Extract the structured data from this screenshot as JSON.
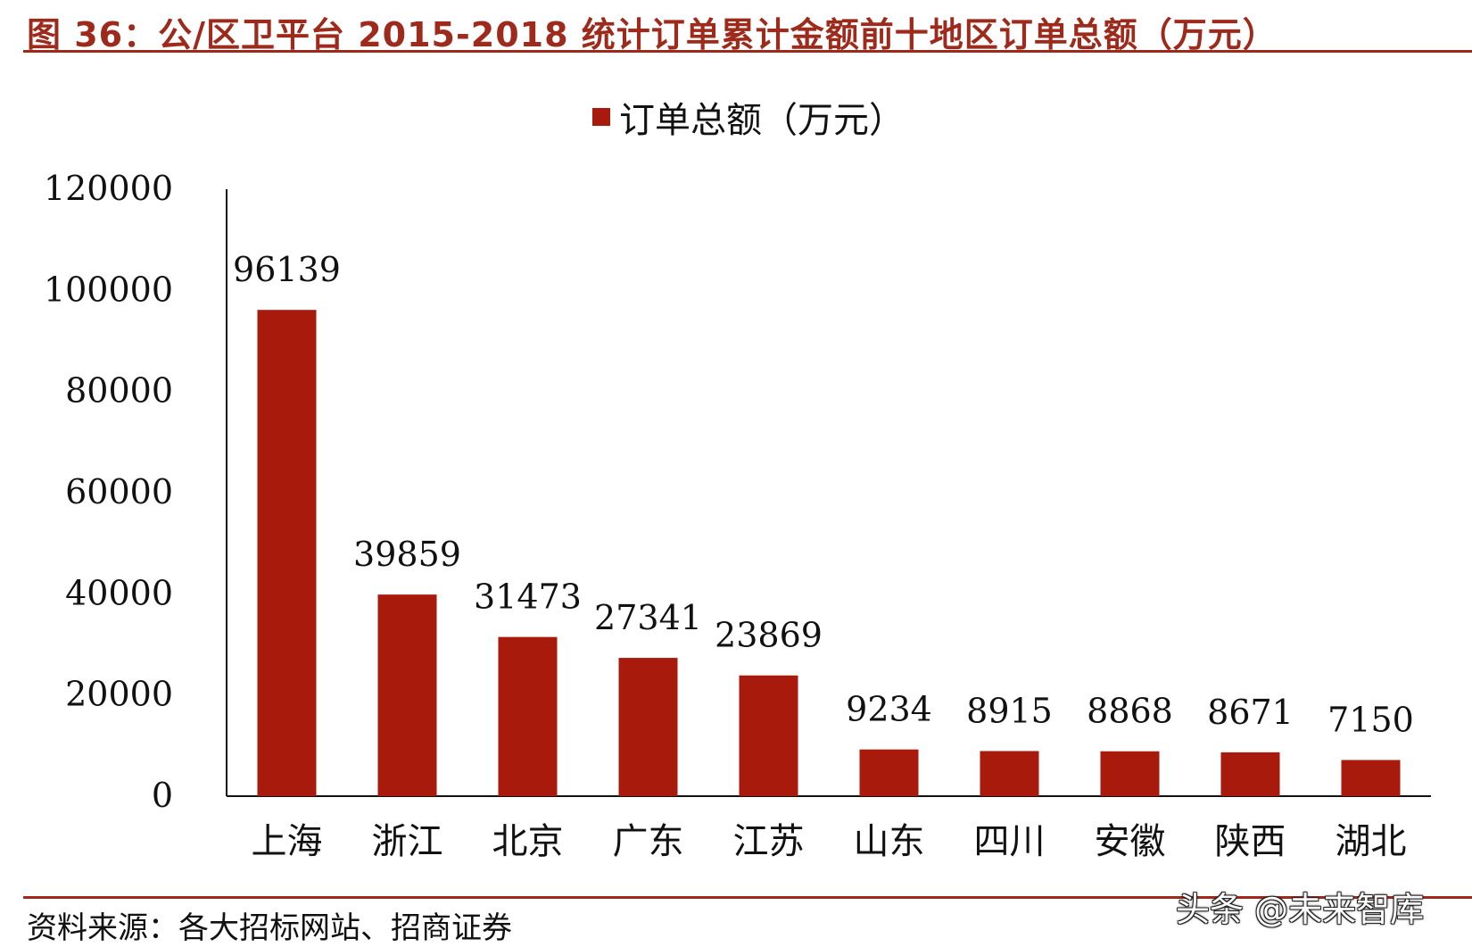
{
  "figure": {
    "title": "图 36：公/区卫平台 2015-2018 统计订单累计金额前十地区订单总额（万元）",
    "source": "资料来源：各大招标网站、招商证券",
    "watermark": "头条 @未来智库"
  },
  "colors": {
    "bar": "#a81a0c",
    "title": "#9e2a1c",
    "axis": "#111111"
  },
  "chart_data": {
    "type": "bar",
    "categories": [
      "上海",
      "浙江",
      "北京",
      "广东",
      "江苏",
      "山东",
      "四川",
      "安徽",
      "陕西",
      "湖北"
    ],
    "series": [
      {
        "name": "订单总额（万元）",
        "values": [
          96139,
          39859,
          31473,
          27341,
          23869,
          9234,
          8915,
          8868,
          8671,
          7150
        ]
      }
    ],
    "data_labels": [
      "96139",
      "39859",
      "31473",
      "27341",
      "23869",
      "9234",
      "8915",
      "8868",
      "8671",
      "7150"
    ],
    "yticks": [
      "0",
      "20000",
      "40000",
      "60000",
      "80000",
      "100000",
      "120000"
    ],
    "ylim": [
      0,
      120000
    ],
    "grid": false,
    "legend": "top-center"
  }
}
